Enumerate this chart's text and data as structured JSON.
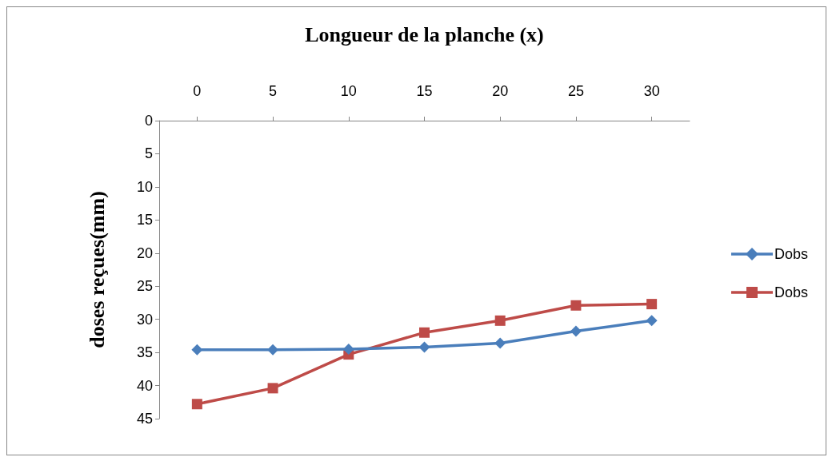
{
  "chart_data": {
    "type": "line",
    "xlabel": "Longueur de la planche (x)",
    "ylabel": "doses reçues(mm)",
    "categories": [
      "0",
      "5",
      "10",
      "15",
      "20",
      "25",
      "30"
    ],
    "series": [
      {
        "name": "Dobs",
        "color": "#4a7ebb",
        "marker": "diamond",
        "values": [
          34.6,
          34.6,
          34.5,
          34.2,
          33.6,
          31.8,
          30.2
        ]
      },
      {
        "name": "Dobs",
        "color": "#be4b48",
        "marker": "square",
        "values": [
          42.8,
          40.4,
          35.3,
          32.0,
          30.2,
          27.9,
          27.7
        ]
      }
    ],
    "ylim": [
      45,
      0
    ],
    "yticks": [
      0,
      5,
      10,
      15,
      20,
      25,
      30,
      35,
      40,
      45
    ],
    "grid": false,
    "legend": "right",
    "line_style": "solid"
  }
}
